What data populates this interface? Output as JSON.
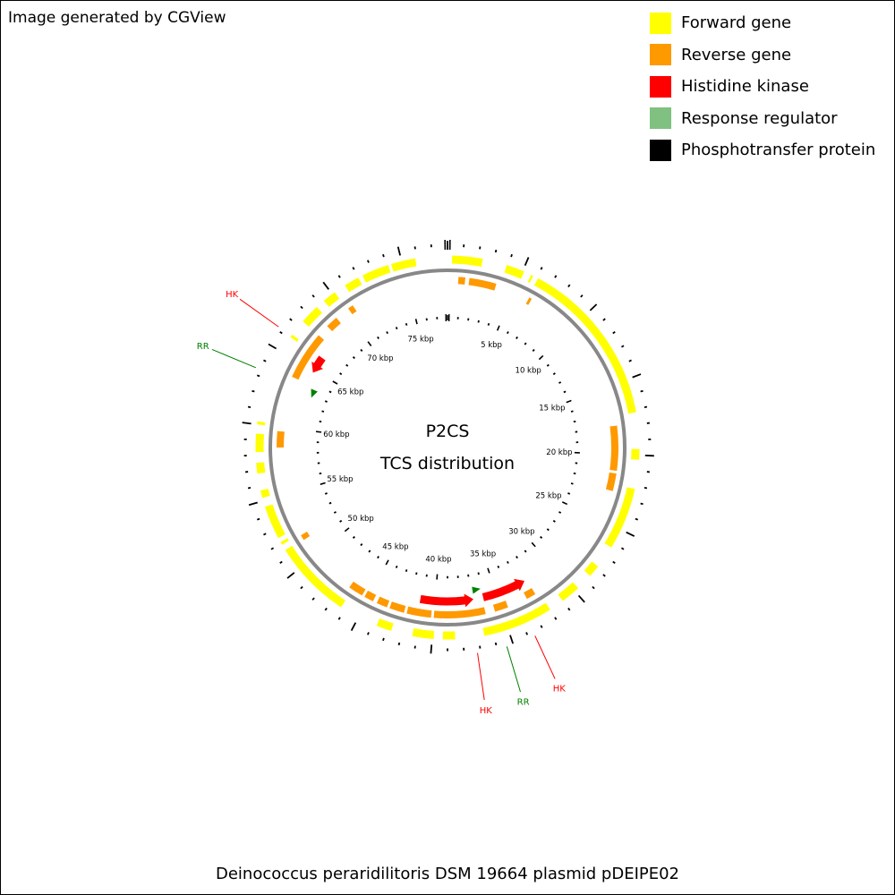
{
  "credit": "Image generated by CGView",
  "legend": [
    {
      "label": "Forward gene",
      "color": "#ffff00"
    },
    {
      "label": "Reverse gene",
      "color": "#ff9900"
    },
    {
      "label": "Histidine kinase",
      "color": "#ff0000"
    },
    {
      "label": "Response regulator",
      "color": "#80c080"
    },
    {
      "label": "Phosphotransfer protein",
      "color": "#000000"
    }
  ],
  "center": {
    "line1": "P2CS",
    "line2": "TCS distribution"
  },
  "footer": "Deinococcus peraridilitoris DSM 19664 plasmid pDEIPE02",
  "map": {
    "length_kbp": 78,
    "tick_labels": [
      "5 kbp",
      "10 kbp",
      "15 kbp",
      "20 kbp",
      "25 kbp",
      "30 kbp",
      "35 kbp",
      "40 kbp",
      "45 kbp",
      "50 kbp",
      "55 kbp",
      "60 kbp",
      "65 kbp",
      "70 kbp",
      "75 kbp"
    ],
    "forward_genes": [
      [
        0.3,
        2.3
      ],
      [
        3.9,
        5.1
      ],
      [
        5.6,
        5.75
      ],
      [
        6.1,
        17.2
      ],
      [
        19.6,
        20.3
      ],
      [
        22.2,
        26.3
      ],
      [
        27.8,
        28.6
      ],
      [
        29.7,
        31.0
      ],
      [
        32.0,
        36.6
      ],
      [
        38.5,
        39.3
      ],
      [
        39.9,
        41.3
      ],
      [
        42.7,
        43.7
      ],
      [
        46.3,
        51.5
      ],
      [
        51.9,
        52.1
      ],
      [
        52.4,
        54.6
      ],
      [
        55.2,
        55.7
      ],
      [
        56.8,
        57.5
      ],
      [
        58.2,
        59.4
      ],
      [
        60.0,
        60.2
      ],
      [
        66.1,
        66.3
      ],
      [
        67.4,
        68.7
      ],
      [
        69.3,
        70.2
      ],
      [
        71.0,
        72.0
      ],
      [
        72.3,
        74.1
      ],
      [
        74.3,
        75.9
      ]
    ],
    "reverse_genes": [
      [
        0.8,
        1.3
      ],
      [
        1.6,
        3.6
      ],
      [
        6.2,
        6.4
      ],
      [
        17.9,
        21.2
      ],
      [
        21.4,
        22.7
      ],
      [
        32.3,
        33.0
      ],
      [
        34.5,
        35.5
      ],
      [
        36.2,
        40.0
      ],
      [
        40.2,
        42.0
      ],
      [
        42.2,
        43.3
      ],
      [
        43.5,
        44.3
      ],
      [
        44.6,
        45.3
      ],
      [
        45.5,
        46.6
      ],
      [
        51.4,
        51.8
      ],
      [
        58.5,
        59.7
      ],
      [
        63.8,
        67.4
      ],
      [
        68.3,
        69.2
      ],
      [
        70.3,
        70.7
      ]
    ],
    "histidine_kinases": [
      {
        "start": 36.9,
        "end": 41.2,
        "arrow": "end"
      },
      {
        "start": 32.5,
        "end": 36.1,
        "arrow": "end"
      },
      {
        "start": 64.8,
        "end": 66.2,
        "arrow": "end"
      }
    ],
    "response_regulators": [
      {
        "position": 36.5
      },
      {
        "position": 63.2
      }
    ],
    "tcs_labels": [
      {
        "text": "HK",
        "color": "#ff0000",
        "position": 66.2
      },
      {
        "text": "RR",
        "color": "#008000",
        "position": 63.4
      },
      {
        "text": "HK",
        "color": "#ff0000",
        "position": 37.2
      },
      {
        "text": "RR",
        "color": "#008000",
        "position": 35.4
      },
      {
        "text": "HK",
        "color": "#ff0000",
        "position": 33.6
      }
    ]
  }
}
